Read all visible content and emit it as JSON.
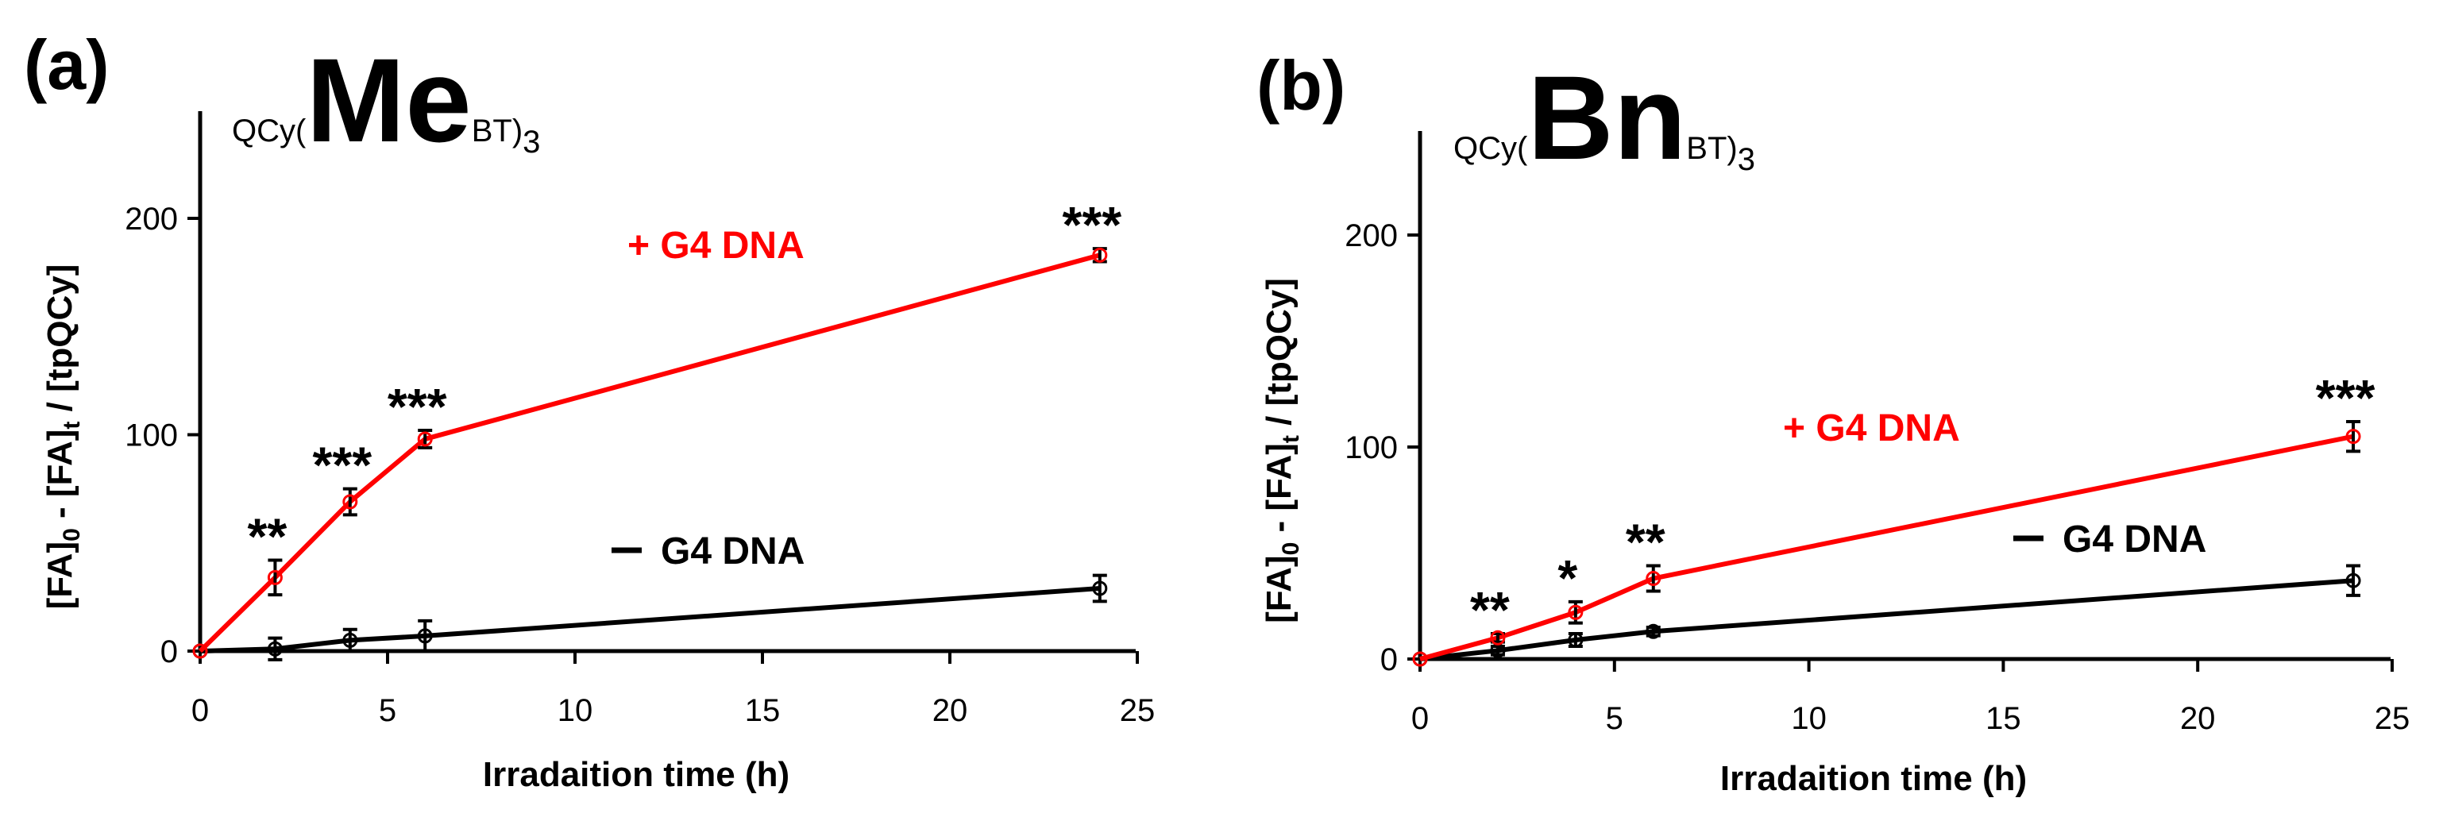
{
  "chart_data": [
    {
      "type": "line",
      "panel_label": "(a)",
      "compound": {
        "prefix": "QCy(",
        "main": "Me",
        "subscript": "BT)",
        "suffix": "3"
      },
      "xlabel": "Irradaition time  (h)",
      "ylabel": {
        "part1": "[FA]",
        "sub1": "0",
        "part2": " - [FA]",
        "sub2": "t",
        "part3": " / [tpQCy]"
      },
      "xlim": [
        0,
        25
      ],
      "ylim": [
        0,
        240
      ],
      "xticks": [
        0,
        5,
        10,
        15,
        20,
        25
      ],
      "yticks": [
        0,
        100,
        200
      ],
      "series": [
        {
          "name": "+ G4 DNA",
          "color": "#ff0000",
          "x": [
            0,
            2,
            4,
            6,
            24
          ],
          "y": [
            0,
            34,
            69,
            98,
            183
          ],
          "err": [
            0,
            8,
            6,
            4,
            3
          ]
        },
        {
          "name": "− G4 DNA",
          "color": "#000000",
          "x": [
            0,
            2,
            4,
            6,
            24
          ],
          "y": [
            0,
            1,
            5,
            7,
            29
          ],
          "err": [
            0,
            5,
            5,
            7,
            6
          ]
        }
      ],
      "legend": [
        {
          "text": "+ G4 DNA",
          "color": "#ff0000"
        },
        {
          "text": "G4 DNA",
          "dash": true,
          "color": "#000000"
        }
      ],
      "annotations": [
        {
          "text": "**",
          "x": 2,
          "y": 34
        },
        {
          "text": "***",
          "x": 4,
          "y": 69
        },
        {
          "text": "***",
          "x": 6,
          "y": 98
        },
        {
          "text": "***",
          "x": 24,
          "y": 183
        }
      ]
    },
    {
      "type": "line",
      "panel_label": "(b)",
      "compound": {
        "prefix": "QCy(",
        "main": "Bn",
        "subscript": "BT)",
        "suffix": "3"
      },
      "xlabel": "Irradaition time  (h)",
      "ylabel": {
        "part1": "[FA]",
        "sub1": "0",
        "part2": " - [FA]",
        "sub2": "t",
        "part3": " / [tpQCy]"
      },
      "xlim": [
        0,
        25
      ],
      "ylim": [
        0,
        250
      ],
      "xticks": [
        0,
        5,
        10,
        15,
        20,
        25
      ],
      "yticks": [
        0,
        100,
        200
      ],
      "series": [
        {
          "name": "+ G4 DNA",
          "color": "#ff0000",
          "x": [
            0,
            2,
            4,
            6,
            24
          ],
          "y": [
            0,
            10,
            22,
            38,
            105
          ],
          "err": [
            0,
            2,
            5,
            6,
            7
          ]
        },
        {
          "name": "− G4 DNA",
          "color": "#000000",
          "x": [
            0,
            2,
            4,
            6,
            24
          ],
          "y": [
            0,
            4,
            9,
            13,
            37
          ],
          "err": [
            0,
            2,
            3,
            2,
            7
          ]
        }
      ],
      "legend": [
        {
          "text": "+ G4 DNA",
          "color": "#ff0000"
        },
        {
          "text": "G4 DNA",
          "dash": true,
          "color": "#000000"
        }
      ],
      "annotations": [
        {
          "text": "**",
          "x": 2,
          "y": 10
        },
        {
          "text": "*",
          "x": 4,
          "y": 22
        },
        {
          "text": "**",
          "x": 6,
          "y": 38
        },
        {
          "text": "***",
          "x": 24,
          "y": 105
        }
      ]
    }
  ]
}
